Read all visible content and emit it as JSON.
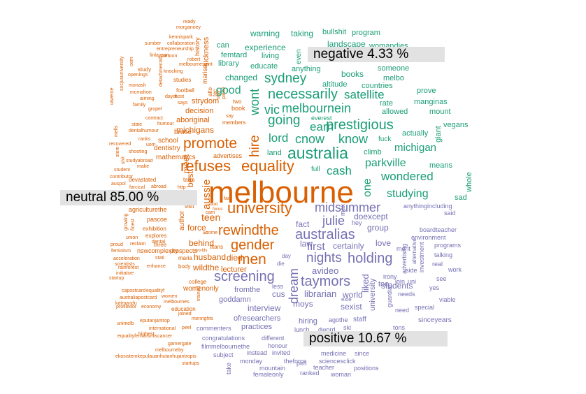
{
  "chart_data": {
    "type": "comparison-wordcloud",
    "title": "",
    "categories": [
      {
        "key": "negative",
        "label": "negative 4.33 %",
        "percent": 4.33,
        "color": "#1b9e77"
      },
      {
        "key": "neutral",
        "label": "neutral 85.00 %",
        "percent": 85.0,
        "color": "#d95f02"
      },
      {
        "key": "positive",
        "label": "positive 10.67 %",
        "percent": 10.67,
        "color": "#7570b3"
      }
    ],
    "words": {
      "negative": [
        "australia",
        "necessarily",
        "sydney",
        "prestigious",
        "going",
        "wont",
        "hire",
        "vic",
        "melbournein",
        "earn",
        "cnow",
        "know",
        "lord",
        "michigan",
        "parkville",
        "good",
        "satellite",
        "wondered",
        "studying",
        "one",
        "experience",
        "warning",
        "taking",
        "bullshit",
        "program",
        "can",
        "femtard",
        "living",
        "library",
        "educate",
        "landscape",
        "womandies",
        "even",
        "changed",
        "anything",
        "books",
        "someone",
        "melbo",
        "altitude",
        "countries",
        "prove",
        "rate",
        "allowed",
        "manginas",
        "mount",
        "everest",
        "climb",
        "fuck",
        "actually",
        "giant",
        "vegans",
        "land",
        "full",
        "means",
        "whole",
        "sad",
        "cash"
      ],
      "neutral": [
        "melbourne",
        "university",
        "equality",
        "refuses",
        "promote",
        "rewindthe",
        "men",
        "gender",
        "aussie",
        "teen",
        "hire",
        "best",
        "meet",
        "force",
        "behind",
        "husband",
        "wildthe",
        "died",
        "lecturer",
        "screening",
        "michigans",
        "decision",
        "aboriginal",
        "bruce",
        "mathematics",
        "school",
        "dentistry",
        "advertises",
        "sickness",
        "history",
        "marise",
        "strydom",
        "book",
        "two",
        "members",
        "alto",
        "tec",
        "say",
        "study",
        "studies",
        "football",
        "cartoon",
        "finlayson",
        "openings",
        "monash",
        "mcmahon",
        "aiming",
        "family",
        "gropel",
        "contract",
        "humour",
        "state",
        "dentalhumour",
        "recovered",
        "uom",
        "ranks",
        "shooting",
        "studyabroad",
        "make",
        "student",
        "devastated",
        "farcical",
        "abroad",
        "agriculturethe",
        "visit",
        "duo",
        "cam",
        "focus",
        "art",
        "come",
        "pascoe",
        "explores",
        "exhibition",
        "union",
        "reclaim",
        "dental",
        "three",
        "nswcomplexity",
        "feminism",
        "acceleration",
        "scientists",
        "rainforest",
        "enhance",
        "initiative",
        "startup",
        "prospects",
        "maria",
        "body",
        "titans",
        "college",
        "womenonly",
        "capostcard",
        "equalityf",
        "australiapostcard",
        "women",
        "katmandu",
        "melbournes",
        "profiledor",
        "economy",
        "education",
        "trained",
        "joined",
        "menrights",
        "eputanjantrop",
        "unimelb",
        "international",
        "peel",
        "equalityfeminismiscancer",
        "gamergate",
        "melbourneby",
        "ekosistemkepulauanhutanhujantropis",
        "startups",
        "kennispark",
        "collaboration",
        "entrepreneurship",
        "sumber",
        "ready",
        "morganoey",
        "robert",
        "melbournespirit",
        "knocking",
        "detachmentsll",
        "host",
        "dayat",
        "says",
        "talks",
        "http",
        "fact",
        "ugly",
        "pathe",
        "stem",
        "shit",
        "contributor",
        "auspol",
        "growing",
        "finest",
        "proud",
        "highest",
        "utwente",
        "socjusuniversity",
        "mells",
        "oem",
        "author",
        "worlds",
        "stati"
      ],
      "positive": [
        "midsummer",
        "australias",
        "julie",
        "nights",
        "holding",
        "first",
        "taymors",
        "dream",
        "liked",
        "law",
        "certainly",
        "love",
        "screening",
        "doexcept",
        "group",
        "fact",
        "hey",
        "max",
        "anythingincluding",
        "said",
        "boardteacher",
        "environment",
        "programs",
        "talking",
        "work",
        "real",
        "see",
        "yes",
        "viable",
        "special",
        "need",
        "needs",
        "avideo",
        "librarian",
        "world",
        "sexist",
        "cus",
        "moys",
        "interview",
        "fromthe",
        "goddamn",
        "ofresearchers",
        "practices",
        "hiring",
        "agothe",
        "staff",
        "sinceyears",
        "tons",
        "guardian",
        "university",
        "too",
        "students",
        "irony",
        "side",
        "join",
        "uni",
        "investment",
        "advertising",
        "alternative",
        "merit",
        "commenters",
        "congratulations",
        "different",
        "filmmelbournethe",
        "honour",
        "subject",
        "instead",
        "invited",
        "medicine",
        "since",
        "theforce",
        "plm",
        "sciencesclick",
        "teacher",
        "positions",
        "woman",
        "ranked",
        "mountain",
        "monday",
        "femaleonly",
        "take",
        "lunch",
        "dword",
        "ski",
        "exle",
        "less",
        "day",
        "die"
      ]
    }
  }
}
